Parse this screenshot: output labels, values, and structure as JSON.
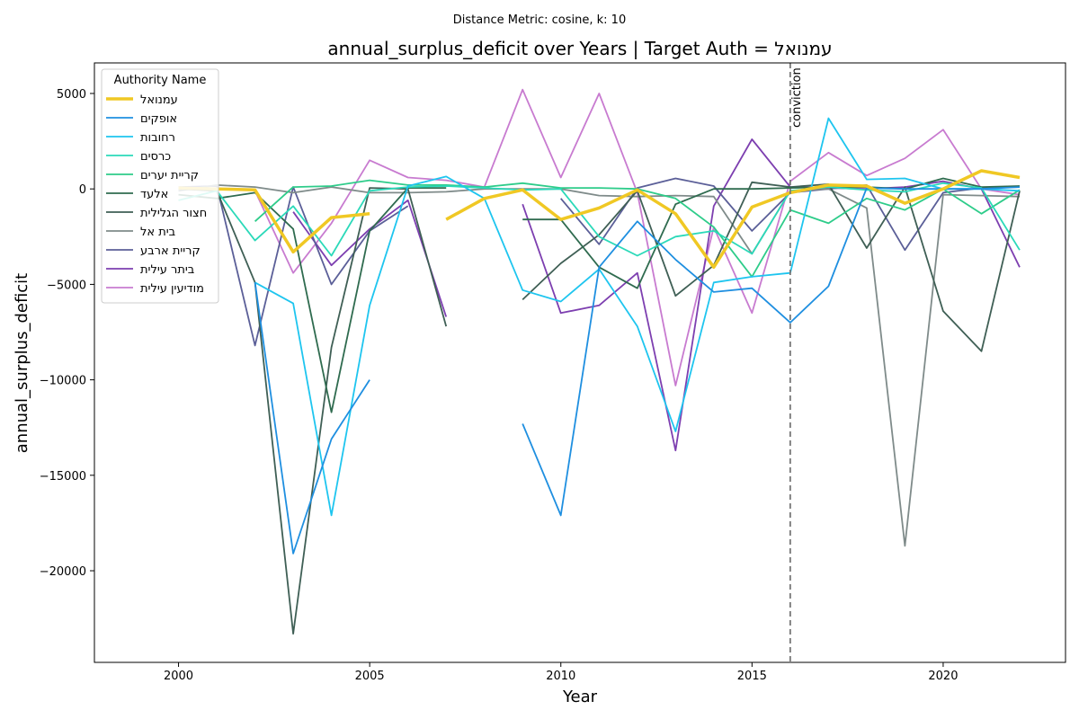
{
  "chart_data": {
    "type": "line",
    "subtitle": "Distance Metric: cosine, k: 10",
    "title": "annual_surplus_deficit over Years | Target Auth = עמנואל",
    "xlabel": "Year",
    "ylabel": "annual_surplus_deficit",
    "xlim": [
      1997.8,
      2023.2
    ],
    "ylim": [
      -24800,
      6600
    ],
    "xticks": [
      2000,
      2005,
      2010,
      2015,
      2020
    ],
    "yticks": [
      5000,
      0,
      -5000,
      -10000,
      -15000,
      -20000
    ],
    "grid": false,
    "legend_title": "Authority Name",
    "legend_position": "top-left",
    "vline": {
      "x": 2016,
      "label": "conviction",
      "color": "#777777"
    },
    "series": [
      {
        "name": "עמנואל",
        "color": "#f0c824",
        "width": 3.5,
        "points": [
          [
            2000,
            50
          ],
          [
            2001,
            0
          ],
          [
            2002,
            -50
          ],
          [
            2003,
            -3300
          ],
          [
            2004,
            -1500
          ],
          [
            2005,
            -1300
          ],
          [
            null,
            null
          ],
          [
            2007,
            -1600
          ],
          [
            2008,
            -500
          ],
          [
            2009,
            -50
          ],
          [
            2010,
            -1600
          ],
          [
            2011,
            -1000
          ],
          [
            2012,
            -50
          ],
          [
            2013,
            -1300
          ],
          [
            2014,
            -4100
          ],
          [
            2015,
            -950
          ],
          [
            2016,
            -200
          ],
          [
            2017,
            200
          ],
          [
            2018,
            150
          ],
          [
            2019,
            -750
          ],
          [
            2020,
            0
          ],
          [
            2021,
            950
          ],
          [
            2022,
            600
          ]
        ]
      },
      {
        "name": "אופקים",
        "color": "#1f8fe0",
        "width": 1.8,
        "points": [
          [
            2002,
            -4900
          ],
          [
            2003,
            -19100
          ],
          [
            2004,
            -13100
          ],
          [
            2005,
            -10000
          ],
          [
            null,
            null
          ],
          [
            2009,
            -12300
          ],
          [
            2010,
            -17100
          ],
          [
            2011,
            -4100
          ],
          [
            2012,
            -1700
          ],
          [
            2013,
            -3700
          ],
          [
            2014,
            -5400
          ],
          [
            2015,
            -5200
          ],
          [
            2016,
            -7000
          ],
          [
            2017,
            -5100
          ],
          [
            2018,
            50
          ],
          [
            2019,
            0
          ],
          [
            2020,
            0
          ],
          [
            2021,
            0
          ],
          [
            2022,
            100
          ]
        ]
      },
      {
        "name": "רחובות",
        "color": "#1ec5ef",
        "width": 1.8,
        "points": [
          [
            2002,
            -4900
          ],
          [
            2003,
            -6000
          ],
          [
            2004,
            -17100
          ],
          [
            2005,
            -6100
          ],
          [
            2006,
            150
          ],
          [
            2007,
            650
          ],
          [
            2008,
            -500
          ],
          [
            2009,
            -5300
          ],
          [
            2010,
            -5900
          ],
          [
            2011,
            -4200
          ],
          [
            2012,
            -7200
          ],
          [
            2013,
            -12700
          ],
          [
            2014,
            -4900
          ],
          [
            2015,
            -4600
          ],
          [
            2016,
            -4400
          ],
          [
            2017,
            3700
          ],
          [
            2018,
            500
          ],
          [
            2019,
            550
          ],
          [
            2020,
            0
          ],
          [
            2021,
            0
          ],
          [
            2022,
            -100
          ]
        ]
      },
      {
        "name": "כרסים",
        "color": "#2bd9b9",
        "width": 1.8,
        "points": [
          [
            2000,
            -600
          ],
          [
            2001,
            -100
          ],
          [
            2002,
            -2700
          ],
          [
            2003,
            -900
          ],
          [
            2004,
            -3500
          ],
          [
            2005,
            -100
          ],
          [
            2006,
            100
          ],
          [
            2007,
            150
          ],
          [
            2008,
            50
          ],
          [
            2009,
            -50
          ],
          [
            2010,
            0
          ],
          [
            2011,
            -2500
          ],
          [
            2012,
            -3500
          ],
          [
            2013,
            -2500
          ],
          [
            2014,
            -2200
          ],
          [
            2015,
            -3400
          ],
          [
            2016,
            -100
          ],
          [
            2017,
            100
          ],
          [
            2018,
            -50
          ],
          [
            2019,
            -150
          ],
          [
            2020,
            300
          ],
          [
            2021,
            50
          ],
          [
            2022,
            -3200
          ]
        ]
      },
      {
        "name": "קריית יערים",
        "color": "#2ecc8a",
        "width": 1.8,
        "points": [
          [
            2002,
            -1700
          ],
          [
            2003,
            100
          ],
          [
            2004,
            150
          ],
          [
            2005,
            450
          ],
          [
            2006,
            200
          ],
          [
            2007,
            200
          ],
          [
            2008,
            100
          ],
          [
            2009,
            300
          ],
          [
            2010,
            50
          ],
          [
            2011,
            50
          ],
          [
            2012,
            0
          ],
          [
            2013,
            -500
          ],
          [
            2014,
            -2000
          ],
          [
            2015,
            -4600
          ],
          [
            2016,
            -1100
          ],
          [
            2017,
            -1800
          ],
          [
            2018,
            -500
          ],
          [
            2019,
            -1100
          ],
          [
            2020,
            0
          ],
          [
            2021,
            -1300
          ],
          [
            2022,
            -50
          ]
        ]
      },
      {
        "name": "אלעד",
        "color": "#2f6b4f",
        "width": 1.8,
        "points": [
          [
            2000,
            -300
          ],
          [
            2001,
            -500
          ],
          [
            2002,
            -200
          ],
          [
            2003,
            -2100
          ],
          [
            2004,
            -11700
          ],
          [
            2005,
            -2200
          ],
          [
            2006,
            50
          ],
          [
            2007,
            50
          ],
          [
            null,
            null
          ],
          [
            2009,
            -1600
          ],
          [
            2010,
            -1600
          ],
          [
            2011,
            -4100
          ],
          [
            2012,
            -5200
          ],
          [
            2013,
            -800
          ],
          [
            2014,
            0
          ],
          [
            2015,
            0
          ],
          [
            2016,
            50
          ],
          [
            2017,
            100
          ],
          [
            2018,
            100
          ],
          [
            2019,
            0
          ],
          [
            2020,
            550
          ],
          [
            2021,
            100
          ],
          [
            2022,
            150
          ]
        ]
      },
      {
        "name": "חצור הגלילית",
        "color": "#3f5f55",
        "width": 1.8,
        "points": [
          [
            2000,
            0
          ],
          [
            2001,
            -100
          ],
          [
            2002,
            -4900
          ],
          [
            2003,
            -23300
          ],
          [
            2004,
            -8300
          ],
          [
            2005,
            50
          ],
          [
            2006,
            0
          ],
          [
            2007,
            -7200
          ],
          [
            null,
            null
          ],
          [
            2009,
            -5800
          ],
          [
            2010,
            -3900
          ],
          [
            2011,
            -2400
          ],
          [
            2012,
            -100
          ],
          [
            2013,
            -5600
          ],
          [
            2014,
            -4000
          ],
          [
            2015,
            350
          ],
          [
            2016,
            100
          ],
          [
            2017,
            250
          ],
          [
            2018,
            -3100
          ],
          [
            2019,
            100
          ],
          [
            2020,
            -6400
          ],
          [
            2021,
            -8500
          ],
          [
            2022,
            -100
          ]
        ]
      },
      {
        "name": "בית אל",
        "color": "#7f8b8a",
        "width": 1.8,
        "points": [
          [
            2000,
            -100
          ],
          [
            2001,
            200
          ],
          [
            2002,
            100
          ],
          [
            2003,
            -200
          ],
          [
            2004,
            100
          ],
          [
            2005,
            -200
          ],
          [
            2006,
            -200
          ],
          [
            2007,
            -150
          ],
          [
            2008,
            0
          ],
          [
            2009,
            0
          ],
          [
            2010,
            0
          ],
          [
            2011,
            -350
          ],
          [
            2012,
            -400
          ],
          [
            2013,
            -350
          ],
          [
            2014,
            -400
          ],
          [
            2015,
            -3400
          ],
          [
            2016,
            -100
          ],
          [
            2017,
            0
          ],
          [
            2018,
            -1000
          ],
          [
            2019,
            -18700
          ],
          [
            2020,
            -300
          ],
          [
            2021,
            -350
          ],
          [
            2022,
            -400
          ]
        ]
      },
      {
        "name": "קריית ארבע",
        "color": "#5b5f98",
        "width": 1.8,
        "points": [
          [
            2000,
            100
          ],
          [
            2001,
            150
          ],
          [
            2002,
            -8200
          ],
          [
            2003,
            100
          ],
          [
            2004,
            -5000
          ],
          [
            2005,
            -2200
          ],
          [
            2006,
            -900
          ],
          [
            null,
            null
          ],
          [
            2010,
            -500
          ],
          [
            2011,
            -2900
          ],
          [
            2012,
            50
          ],
          [
            2013,
            550
          ],
          [
            2014,
            150
          ],
          [
            2015,
            -2200
          ],
          [
            2016,
            -200
          ],
          [
            2017,
            0
          ],
          [
            2018,
            200
          ],
          [
            2019,
            -3200
          ],
          [
            2020,
            -200
          ],
          [
            2021,
            50
          ],
          [
            2022,
            100
          ]
        ]
      },
      {
        "name": "ביתר עילית",
        "color": "#7d3fb0",
        "width": 1.8,
        "points": [
          [
            2003,
            -1200
          ],
          [
            2004,
            -4000
          ],
          [
            2005,
            -2100
          ],
          [
            2006,
            -600
          ],
          [
            2007,
            -6700
          ],
          [
            null,
            null
          ],
          [
            2009,
            -800
          ],
          [
            2010,
            -6500
          ],
          [
            2011,
            -6100
          ],
          [
            2012,
            -4400
          ],
          [
            2013,
            -13700
          ],
          [
            2014,
            -900
          ],
          [
            2015,
            2600
          ],
          [
            2016,
            100
          ],
          [
            2017,
            50
          ],
          [
            2018,
            0
          ],
          [
            2019,
            100
          ],
          [
            2020,
            400
          ],
          [
            2021,
            0
          ],
          [
            2022,
            -4100
          ]
        ]
      },
      {
        "name": "מודיעין עילית",
        "color": "#c87bd0",
        "width": 1.8,
        "points": [
          [
            2002,
            -100
          ],
          [
            2003,
            -4400
          ],
          [
            2004,
            -1800
          ],
          [
            2005,
            1500
          ],
          [
            2006,
            600
          ],
          [
            2007,
            450
          ],
          [
            2008,
            100
          ],
          [
            2009,
            5200
          ],
          [
            2010,
            600
          ],
          [
            2011,
            5000
          ],
          [
            2012,
            -200
          ],
          [
            2013,
            -10300
          ],
          [
            2014,
            -2000
          ],
          [
            2015,
            -6500
          ],
          [
            2016,
            400
          ],
          [
            2017,
            1900
          ],
          [
            2018,
            700
          ],
          [
            2019,
            1600
          ],
          [
            2020,
            3100
          ],
          [
            2021,
            0
          ],
          [
            2022,
            -300
          ]
        ]
      }
    ]
  }
}
